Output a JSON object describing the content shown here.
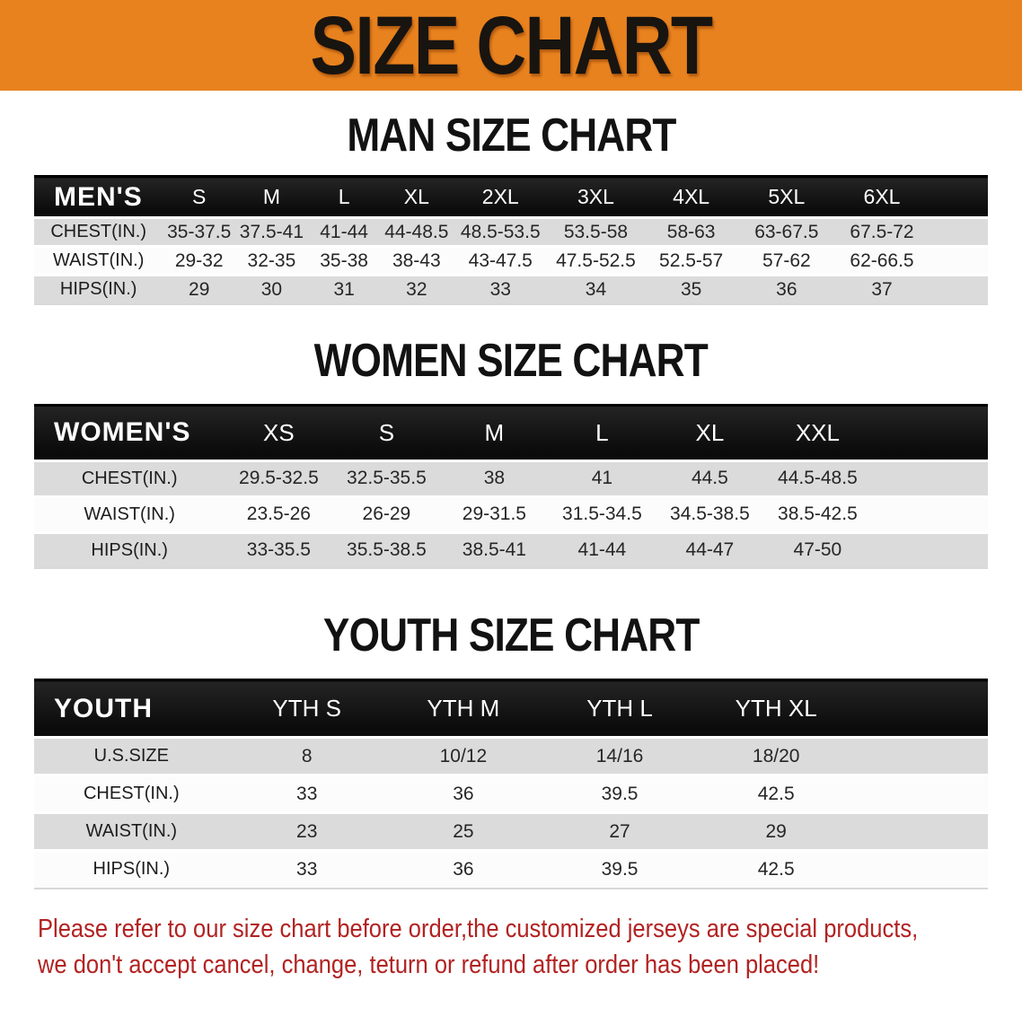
{
  "banner": {
    "title": "SIZE CHART",
    "bg_color": "#E8821E"
  },
  "sections": [
    {
      "heading": "MAN SIZE CHART",
      "table": {
        "header_label": "MEN'S",
        "columns": [
          "S",
          "M",
          "L",
          "XL",
          "2XL",
          "3XL",
          "4XL",
          "5XL",
          "6XL"
        ],
        "rows": [
          {
            "label": "CHEST(IN.)",
            "values": [
              "35-37.5",
              "37.5-41",
              "41-44",
              "44-48.5",
              "48.5-53.5",
              "53.5-58",
              "58-63",
              "63-67.5",
              "67.5-72"
            ]
          },
          {
            "label": "WAIST(IN.)",
            "values": [
              "29-32",
              "32-35",
              "35-38",
              "38-43",
              "43-47.5",
              "47.5-52.5",
              "52.5-57",
              "57-62",
              "62-66.5"
            ]
          },
          {
            "label": "HIPS(IN.)",
            "values": [
              "29",
              "30",
              "31",
              "32",
              "33",
              "34",
              "35",
              "36",
              "37"
            ]
          }
        ]
      }
    },
    {
      "heading": "WOMEN SIZE CHART",
      "table": {
        "header_label": "WOMEN'S",
        "columns": [
          "XS",
          "S",
          "M",
          "L",
          "XL",
          "XXL"
        ],
        "rows": [
          {
            "label": "CHEST(IN.)",
            "values": [
              "29.5-32.5",
              "32.5-35.5",
              "38",
              "41",
              "44.5",
              "44.5-48.5"
            ]
          },
          {
            "label": "WAIST(IN.)",
            "values": [
              "23.5-26",
              "26-29",
              "29-31.5",
              "31.5-34.5",
              "34.5-38.5",
              "38.5-42.5"
            ]
          },
          {
            "label": "HIPS(IN.)",
            "values": [
              "33-35.5",
              "35.5-38.5",
              "38.5-41",
              "41-44",
              "44-47",
              "47-50"
            ]
          }
        ]
      }
    },
    {
      "heading": "YOUTH SIZE CHART",
      "table": {
        "header_label": "YOUTH",
        "columns": [
          "YTH S",
          "YTH M",
          "YTH L",
          "YTH XL"
        ],
        "rows": [
          {
            "label": "U.S.SIZE",
            "values": [
              "8",
              "10/12",
              "14/16",
              "18/20"
            ]
          },
          {
            "label": "CHEST(IN.)",
            "values": [
              "33",
              "36",
              "39.5",
              "42.5"
            ]
          },
          {
            "label": "WAIST(IN.)",
            "values": [
              "23",
              "25",
              "27",
              "29"
            ]
          },
          {
            "label": "HIPS(IN.)",
            "values": [
              "33",
              "36",
              "39.5",
              "42.5"
            ]
          }
        ]
      }
    }
  ],
  "footer": {
    "line1": "Please refer to our size chart before order,the customized jerseys are special products,",
    "line2": "we don't accept cancel, change, teturn or refund after order has been placed!",
    "text_color": "#B22222"
  }
}
